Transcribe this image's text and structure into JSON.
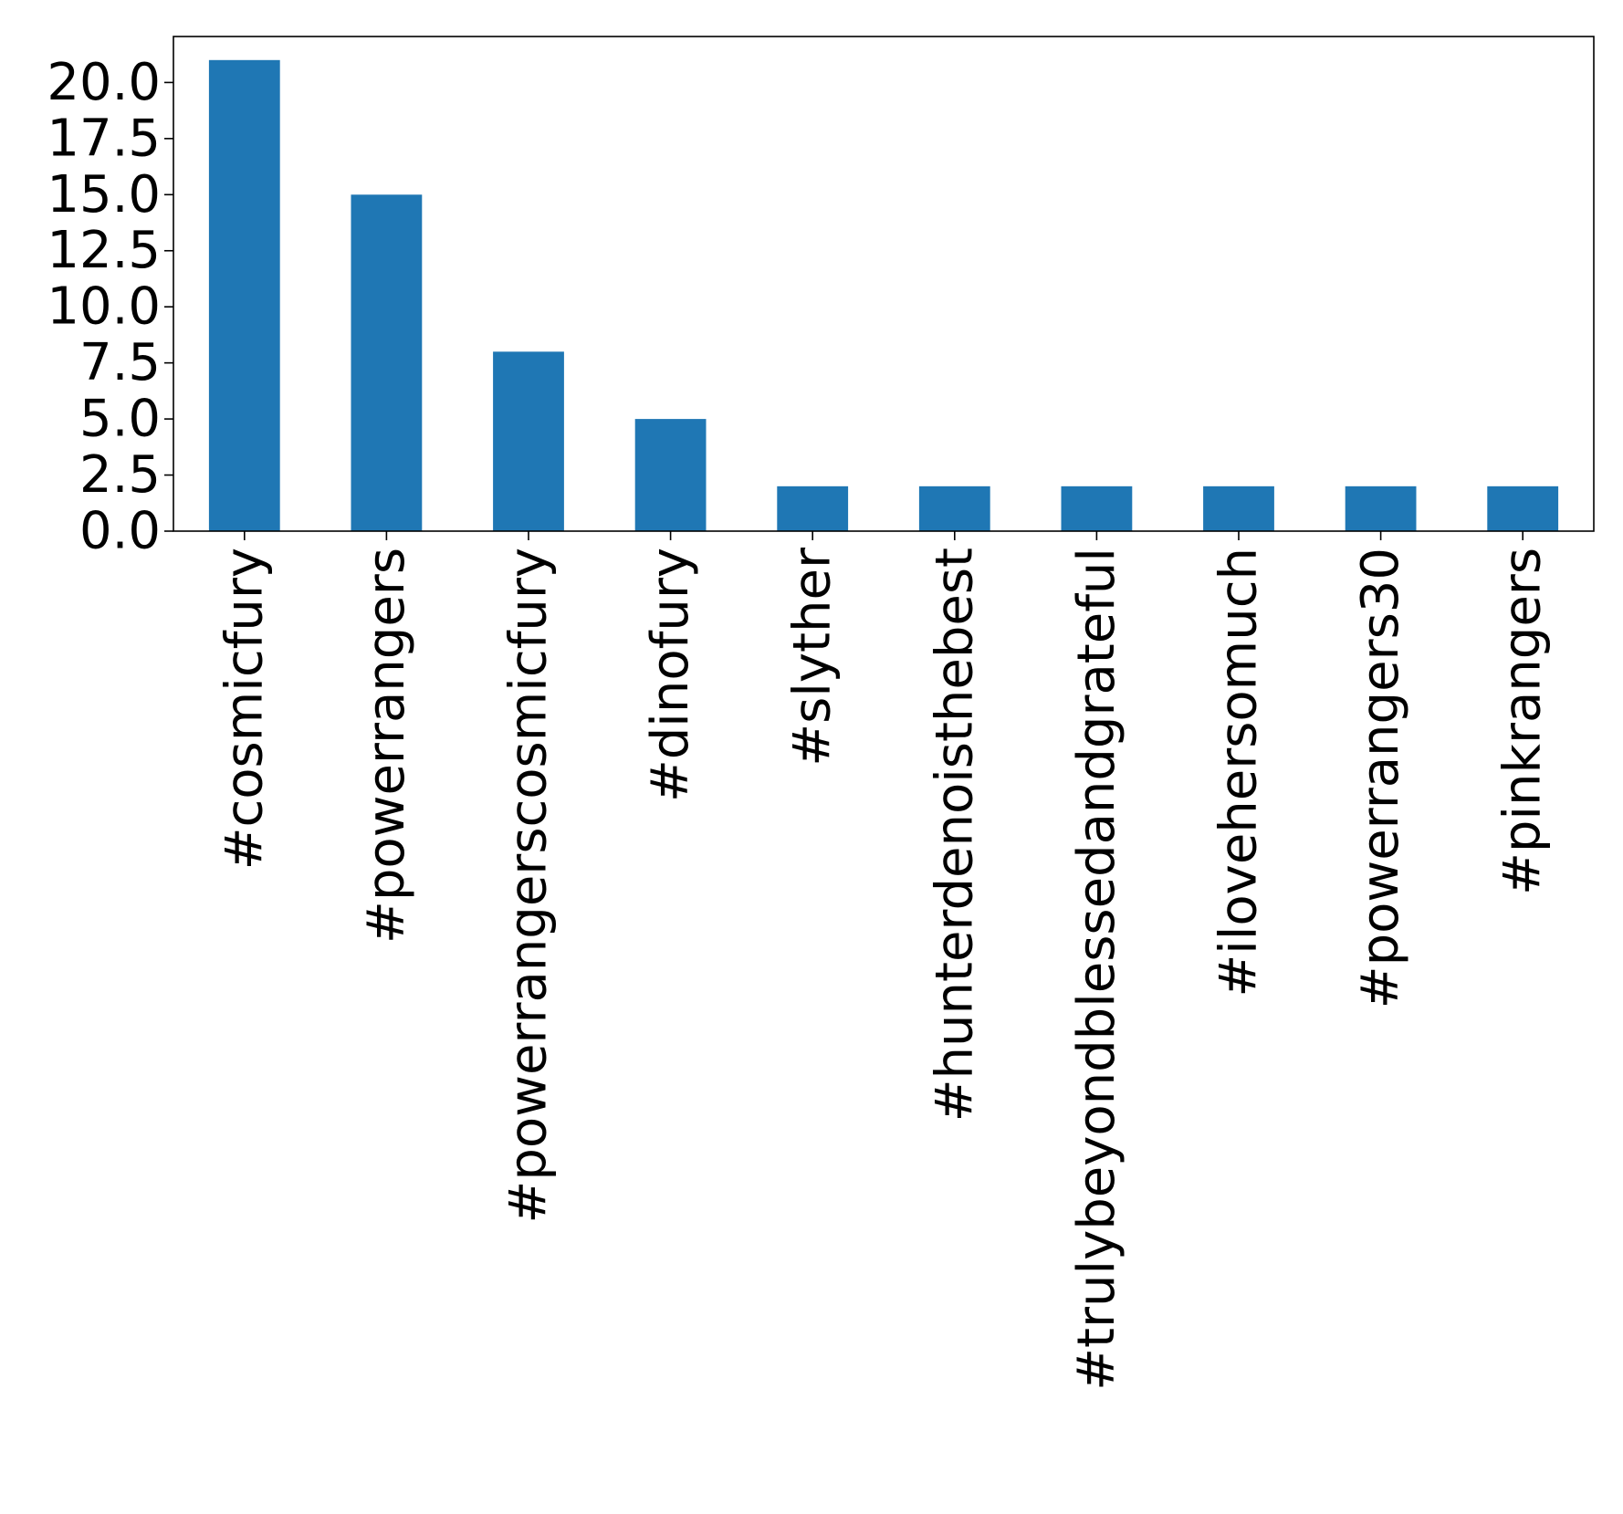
{
  "chart_data": {
    "type": "bar",
    "title": "",
    "xlabel": "",
    "ylabel": "",
    "categories": [
      "#cosmicfury",
      "#powerrangers",
      "#powerrangerscosmicfury",
      "#dinofury",
      "#slyther",
      "#hunterdenoisthebest",
      "#trulybeyondblessedandgrateful",
      "#ilovehersomuch",
      "#powerrangers30",
      "#pinkrangers"
    ],
    "values": [
      21,
      15,
      8,
      5,
      2,
      2,
      2,
      2,
      2,
      2
    ],
    "ylim": [
      0,
      22.05
    ],
    "yticks": [
      0.0,
      2.5,
      5.0,
      7.5,
      10.0,
      12.5,
      15.0,
      17.5,
      20.0
    ],
    "ytick_labels": [
      "0.0",
      "2.5",
      "5.0",
      "7.5",
      "10.0",
      "12.5",
      "15.0",
      "17.5",
      "20.0"
    ],
    "bar_color": "#1f77b4",
    "grid": false,
    "legend": "none"
  }
}
